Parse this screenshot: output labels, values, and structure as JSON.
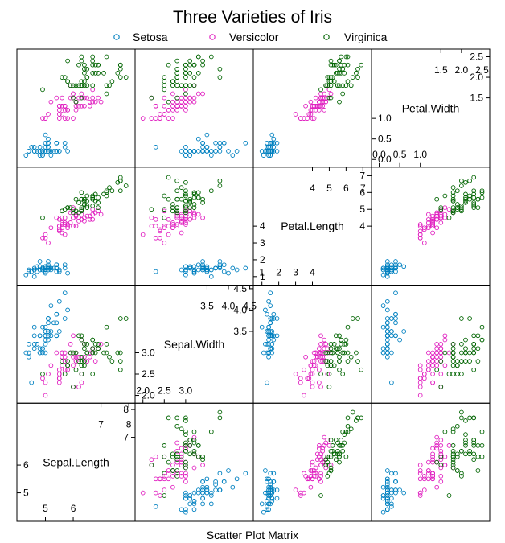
{
  "chart_data": {
    "type": "scatter",
    "title": "Three Varieties of Iris",
    "xlabel": "Scatter Plot Matrix",
    "legend": {
      "position": "top",
      "entries": [
        {
          "label": "Setosa",
          "color": "#0080c0",
          "marker": "circle"
        },
        {
          "label": "Versicolor",
          "color": "#e020c0",
          "marker": "circle"
        },
        {
          "label": "Virginica",
          "color": "#006400",
          "marker": "circle"
        }
      ]
    },
    "variables": [
      {
        "name": "Sepal.Length",
        "range": [
          4.1,
          8.1
        ],
        "upper_ticks": [
          "7",
          "8"
        ],
        "upper_tick_values": [
          7,
          8
        ],
        "side_ticks": [
          "7",
          "8"
        ],
        "side_tick_values": [
          7,
          8
        ],
        "lower_ticks": [
          "5",
          "6"
        ],
        "lower_tick_values": [
          5,
          6
        ],
        "inner_ticks": [
          "5",
          "6"
        ],
        "inner_tick_values": [
          5,
          6
        ]
      },
      {
        "name": "Sepal.Width",
        "range": [
          1.9,
          4.5
        ],
        "upper_ticks": [
          "3.5",
          "4.0",
          "4.5"
        ],
        "upper_tick_values": [
          3.5,
          4.0,
          4.5
        ],
        "side_ticks": [
          "3.5",
          "4.0",
          "4.5"
        ],
        "side_tick_values": [
          3.5,
          4.0,
          4.5
        ],
        "lower_ticks": [
          "2.0",
          "2.5",
          "3.0"
        ],
        "lower_tick_values": [
          2.0,
          2.5,
          3.0
        ],
        "inner_ticks": [
          "2.0",
          "2.5",
          "3.0"
        ],
        "inner_tick_values": [
          2.0,
          2.5,
          3.0
        ]
      },
      {
        "name": "Petal.Length",
        "range": [
          0.7,
          7.3
        ],
        "upper_ticks": [
          "4",
          "5",
          "6",
          "7"
        ],
        "upper_tick_values": [
          4,
          5,
          6,
          7
        ],
        "side_ticks": [
          "4",
          "5",
          "6",
          "7"
        ],
        "side_tick_values": [
          4,
          5,
          6,
          7
        ],
        "lower_ticks": [
          "1",
          "2",
          "3",
          "4"
        ],
        "lower_tick_values": [
          1,
          2,
          3,
          4
        ],
        "inner_ticks": [
          "1",
          "2",
          "3",
          "4"
        ],
        "inner_tick_values": [
          1,
          2,
          3,
          4
        ]
      },
      {
        "name": "Petal.Width",
        "range": [
          -0.1,
          2.6
        ],
        "upper_ticks": [
          "1.5",
          "2.0",
          "2.5"
        ],
        "upper_tick_values": [
          1.5,
          2.0,
          2.5
        ],
        "side_ticks": [
          "1.5",
          "2.0",
          "2.5"
        ],
        "side_tick_values": [
          1.5,
          2.0,
          2.5
        ],
        "lower_ticks": [
          "0.0",
          "0.5",
          "1.0"
        ],
        "lower_tick_values": [
          0.0,
          0.5,
          1.0
        ],
        "inner_ticks": [
          "0.0",
          "0.5",
          "1.0"
        ],
        "inner_tick_values": [
          0.0,
          0.5,
          1.0
        ]
      }
    ],
    "series": [
      {
        "name": "Setosa",
        "values": [
          [
            5.1,
            3.5,
            1.4,
            0.2
          ],
          [
            4.9,
            3.0,
            1.4,
            0.2
          ],
          [
            4.7,
            3.2,
            1.3,
            0.2
          ],
          [
            4.6,
            3.1,
            1.5,
            0.2
          ],
          [
            5.0,
            3.6,
            1.4,
            0.2
          ],
          [
            5.4,
            3.9,
            1.7,
            0.4
          ],
          [
            4.6,
            3.4,
            1.4,
            0.3
          ],
          [
            5.0,
            3.4,
            1.5,
            0.2
          ],
          [
            4.4,
            2.9,
            1.4,
            0.2
          ],
          [
            4.9,
            3.1,
            1.5,
            0.1
          ],
          [
            5.4,
            3.7,
            1.5,
            0.2
          ],
          [
            4.8,
            3.4,
            1.6,
            0.2
          ],
          [
            4.8,
            3.0,
            1.4,
            0.1
          ],
          [
            4.3,
            3.0,
            1.1,
            0.1
          ],
          [
            5.8,
            4.0,
            1.2,
            0.2
          ],
          [
            5.7,
            4.4,
            1.5,
            0.4
          ],
          [
            5.4,
            3.9,
            1.3,
            0.4
          ],
          [
            5.1,
            3.5,
            1.4,
            0.3
          ],
          [
            5.7,
            3.8,
            1.7,
            0.3
          ],
          [
            5.1,
            3.8,
            1.5,
            0.3
          ],
          [
            5.4,
            3.4,
            1.7,
            0.2
          ],
          [
            5.1,
            3.7,
            1.5,
            0.4
          ],
          [
            4.6,
            3.6,
            1.0,
            0.2
          ],
          [
            5.1,
            3.3,
            1.7,
            0.5
          ],
          [
            4.8,
            3.4,
            1.9,
            0.2
          ],
          [
            5.0,
            3.0,
            1.6,
            0.2
          ],
          [
            5.0,
            3.4,
            1.6,
            0.4
          ],
          [
            5.2,
            3.5,
            1.5,
            0.2
          ],
          [
            5.2,
            3.4,
            1.4,
            0.2
          ],
          [
            4.7,
            3.2,
            1.6,
            0.2
          ],
          [
            4.8,
            3.1,
            1.6,
            0.2
          ],
          [
            5.4,
            3.4,
            1.5,
            0.4
          ],
          [
            5.2,
            4.1,
            1.5,
            0.1
          ],
          [
            5.5,
            4.2,
            1.4,
            0.2
          ],
          [
            4.9,
            3.1,
            1.5,
            0.2
          ],
          [
            5.0,
            3.2,
            1.2,
            0.2
          ],
          [
            5.5,
            3.5,
            1.3,
            0.2
          ],
          [
            4.9,
            3.6,
            1.4,
            0.1
          ],
          [
            4.4,
            3.0,
            1.3,
            0.2
          ],
          [
            5.1,
            3.4,
            1.5,
            0.2
          ],
          [
            5.0,
            3.5,
            1.3,
            0.3
          ],
          [
            4.5,
            2.3,
            1.3,
            0.3
          ],
          [
            4.4,
            3.2,
            1.3,
            0.2
          ],
          [
            5.0,
            3.5,
            1.6,
            0.6
          ],
          [
            5.1,
            3.8,
            1.9,
            0.4
          ],
          [
            4.8,
            3.0,
            1.4,
            0.3
          ],
          [
            5.1,
            3.8,
            1.6,
            0.2
          ],
          [
            4.6,
            3.2,
            1.4,
            0.2
          ],
          [
            5.3,
            3.7,
            1.5,
            0.2
          ],
          [
            5.0,
            3.3,
            1.4,
            0.2
          ]
        ]
      },
      {
        "name": "Versicolor",
        "values": [
          [
            7.0,
            3.2,
            4.7,
            1.4
          ],
          [
            6.4,
            3.2,
            4.5,
            1.5
          ],
          [
            6.9,
            3.1,
            4.9,
            1.5
          ],
          [
            5.5,
            2.3,
            4.0,
            1.3
          ],
          [
            6.5,
            2.8,
            4.6,
            1.5
          ],
          [
            5.7,
            2.8,
            4.5,
            1.3
          ],
          [
            6.3,
            3.3,
            4.7,
            1.6
          ],
          [
            4.9,
            2.4,
            3.3,
            1.0
          ],
          [
            6.6,
            2.9,
            4.6,
            1.3
          ],
          [
            5.2,
            2.7,
            3.9,
            1.4
          ],
          [
            5.0,
            2.0,
            3.5,
            1.0
          ],
          [
            5.9,
            3.0,
            4.2,
            1.5
          ],
          [
            6.0,
            2.2,
            4.0,
            1.0
          ],
          [
            6.1,
            2.9,
            4.7,
            1.4
          ],
          [
            5.6,
            2.9,
            3.6,
            1.3
          ],
          [
            6.7,
            3.1,
            4.4,
            1.4
          ],
          [
            5.6,
            3.0,
            4.5,
            1.5
          ],
          [
            5.8,
            2.7,
            4.1,
            1.0
          ],
          [
            6.2,
            2.2,
            4.5,
            1.5
          ],
          [
            5.6,
            2.5,
            3.9,
            1.1
          ],
          [
            5.9,
            3.2,
            4.8,
            1.8
          ],
          [
            6.1,
            2.8,
            4.0,
            1.3
          ],
          [
            6.3,
            2.5,
            4.9,
            1.5
          ],
          [
            6.1,
            2.8,
            4.7,
            1.2
          ],
          [
            6.4,
            2.9,
            4.3,
            1.3
          ],
          [
            6.6,
            3.0,
            4.4,
            1.4
          ],
          [
            6.8,
            2.8,
            4.8,
            1.4
          ],
          [
            6.7,
            3.0,
            5.0,
            1.7
          ],
          [
            6.0,
            2.9,
            4.5,
            1.5
          ],
          [
            5.7,
            2.6,
            3.5,
            1.0
          ],
          [
            5.5,
            2.4,
            3.8,
            1.1
          ],
          [
            5.5,
            2.4,
            3.7,
            1.0
          ],
          [
            5.8,
            2.7,
            3.9,
            1.2
          ],
          [
            6.0,
            2.7,
            5.1,
            1.6
          ],
          [
            5.4,
            3.0,
            4.5,
            1.5
          ],
          [
            6.0,
            3.4,
            4.5,
            1.6
          ],
          [
            6.7,
            3.1,
            4.7,
            1.5
          ],
          [
            6.3,
            2.3,
            4.4,
            1.3
          ],
          [
            5.6,
            3.0,
            4.1,
            1.3
          ],
          [
            5.5,
            2.5,
            4.0,
            1.3
          ],
          [
            5.5,
            2.6,
            4.4,
            1.2
          ],
          [
            6.1,
            3.0,
            4.6,
            1.4
          ],
          [
            5.8,
            2.6,
            4.0,
            1.2
          ],
          [
            5.0,
            2.3,
            3.3,
            1.0
          ],
          [
            5.6,
            2.7,
            4.2,
            1.3
          ],
          [
            5.7,
            3.0,
            4.2,
            1.2
          ],
          [
            5.7,
            2.9,
            4.2,
            1.3
          ],
          [
            6.2,
            2.9,
            4.3,
            1.3
          ],
          [
            5.1,
            2.5,
            3.0,
            1.1
          ],
          [
            5.7,
            2.8,
            4.1,
            1.3
          ]
        ]
      },
      {
        "name": "Virginica",
        "values": [
          [
            6.3,
            3.3,
            6.0,
            2.5
          ],
          [
            5.8,
            2.7,
            5.1,
            1.9
          ],
          [
            7.1,
            3.0,
            5.9,
            2.1
          ],
          [
            6.3,
            2.9,
            5.6,
            1.8
          ],
          [
            6.5,
            3.0,
            5.8,
            2.2
          ],
          [
            7.6,
            3.0,
            6.6,
            2.1
          ],
          [
            4.9,
            2.5,
            4.5,
            1.7
          ],
          [
            7.3,
            2.9,
            6.3,
            1.8
          ],
          [
            6.7,
            2.5,
            5.8,
            1.8
          ],
          [
            7.2,
            3.6,
            6.1,
            2.5
          ],
          [
            6.5,
            3.2,
            5.1,
            2.0
          ],
          [
            6.4,
            2.7,
            5.3,
            1.9
          ],
          [
            6.8,
            3.0,
            5.5,
            2.1
          ],
          [
            5.7,
            2.5,
            5.0,
            2.0
          ],
          [
            5.8,
            2.8,
            5.1,
            2.4
          ],
          [
            6.4,
            3.2,
            5.3,
            2.3
          ],
          [
            6.5,
            3.0,
            5.5,
            1.8
          ],
          [
            7.7,
            3.8,
            6.7,
            2.2
          ],
          [
            7.7,
            2.6,
            6.9,
            2.3
          ],
          [
            6.0,
            2.2,
            5.0,
            1.5
          ],
          [
            6.9,
            3.2,
            5.7,
            2.3
          ],
          [
            5.6,
            2.8,
            4.9,
            2.0
          ],
          [
            7.7,
            2.8,
            6.7,
            2.0
          ],
          [
            6.3,
            2.7,
            4.9,
            1.8
          ],
          [
            6.7,
            3.3,
            5.7,
            2.1
          ],
          [
            7.2,
            3.2,
            6.0,
            1.8
          ],
          [
            6.2,
            2.8,
            4.8,
            1.8
          ],
          [
            6.1,
            3.0,
            4.9,
            1.8
          ],
          [
            6.4,
            2.8,
            5.6,
            2.1
          ],
          [
            7.2,
            3.0,
            5.8,
            1.6
          ],
          [
            7.4,
            2.8,
            6.1,
            1.9
          ],
          [
            7.9,
            3.8,
            6.4,
            2.0
          ],
          [
            6.4,
            2.8,
            5.6,
            2.2
          ],
          [
            6.3,
            2.8,
            5.1,
            1.5
          ],
          [
            6.1,
            2.6,
            5.6,
            1.4
          ],
          [
            7.7,
            3.0,
            6.1,
            2.3
          ],
          [
            6.3,
            3.4,
            5.6,
            2.4
          ],
          [
            6.4,
            3.1,
            5.5,
            1.8
          ],
          [
            6.0,
            3.0,
            4.8,
            1.8
          ],
          [
            6.9,
            3.1,
            5.4,
            2.1
          ],
          [
            6.7,
            3.1,
            5.6,
            2.4
          ],
          [
            6.9,
            3.1,
            5.1,
            2.3
          ],
          [
            5.8,
            2.7,
            5.1,
            1.9
          ],
          [
            6.8,
            3.2,
            5.9,
            2.3
          ],
          [
            6.7,
            3.3,
            5.7,
            2.5
          ],
          [
            6.7,
            3.0,
            5.2,
            2.3
          ],
          [
            6.3,
            2.5,
            5.0,
            1.9
          ],
          [
            6.5,
            3.0,
            5.2,
            2.0
          ],
          [
            6.2,
            3.4,
            5.4,
            2.3
          ],
          [
            5.9,
            3.0,
            5.1,
            1.8
          ]
        ]
      }
    ]
  }
}
